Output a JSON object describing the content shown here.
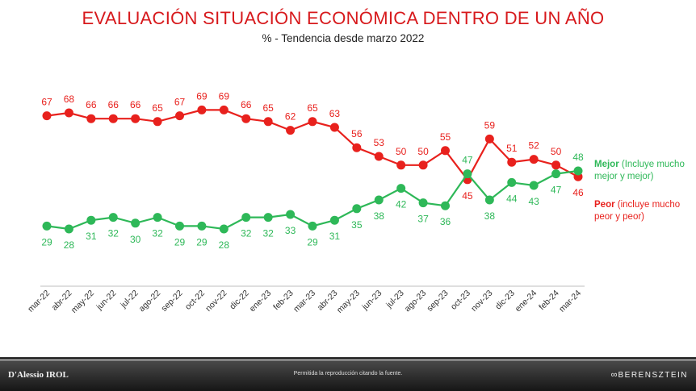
{
  "title": "EVALUACIÓN SITUACIÓN ECONÓMICA DENTRO DE UN AÑO",
  "subtitle": "% - Tendencia desde marzo 2022",
  "legend": {
    "mejor_bold": "Mejor",
    "mejor_rest": " (Incluye mucho mejor y mejor)",
    "peor_bold": "Peor",
    "peor_rest": " (incluye mucho peor y peor)"
  },
  "footer": {
    "left": "D'Alessio IROL",
    "center": "Permitida la reproducción citando la fuente.",
    "right_icon": "∞",
    "right": "BERENSZTEIN"
  },
  "colors": {
    "mejor": "#2eb858",
    "peor": "#e8211d",
    "title": "#d7191c"
  },
  "chart_data": {
    "type": "line",
    "categories": [
      "mar-22",
      "abr-22",
      "may-22",
      "jun-22",
      "jul-22",
      "ago-22",
      "sep-22",
      "oct-22",
      "nov-22",
      "dic-22",
      "ene-23",
      "feb-23",
      "mar-23",
      "abr-23",
      "may-23",
      "jun-23",
      "jul-23",
      "ago-23",
      "sep-23",
      "oct-23",
      "nov-23",
      "dic-23",
      "ene-24",
      "feb-24",
      "mar-24"
    ],
    "series": [
      {
        "name": "Peor",
        "color": "#e8211d",
        "values": [
          67,
          68,
          66,
          66,
          66,
          65,
          67,
          69,
          69,
          66,
          65,
          62,
          65,
          63,
          56,
          53,
          50,
          50,
          55,
          45,
          59,
          51,
          52,
          50,
          46
        ]
      },
      {
        "name": "Mejor",
        "color": "#2eb858",
        "values": [
          29,
          28,
          31,
          32,
          30,
          32,
          29,
          29,
          28,
          32,
          32,
          33,
          29,
          31,
          35,
          38,
          42,
          37,
          36,
          47,
          38,
          44,
          43,
          47,
          48
        ]
      }
    ],
    "grid": false,
    "legend_position": "right"
  }
}
